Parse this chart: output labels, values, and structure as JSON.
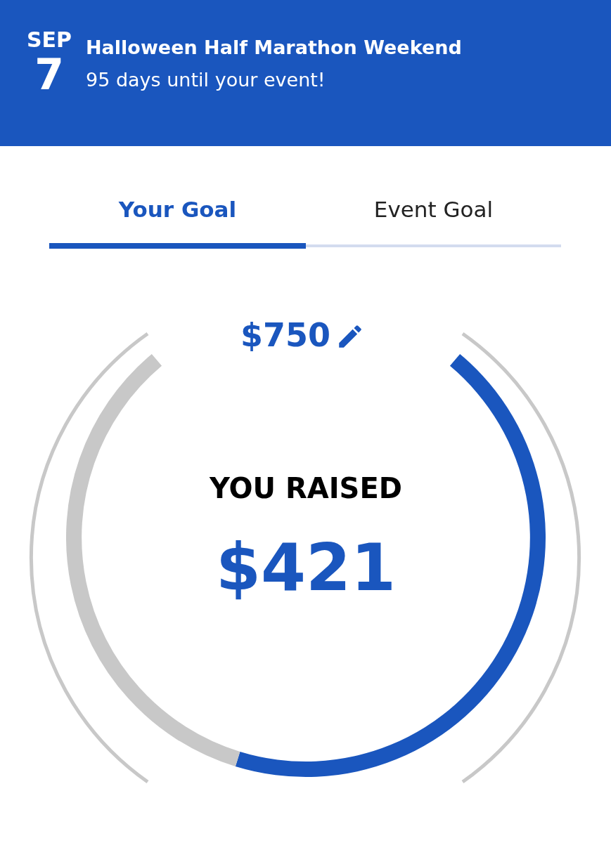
{
  "chart_data": {
    "type": "donut",
    "title": "Halloween Half Marathon Weekend",
    "subtitle": "95 days until your event!",
    "categories": [
      null,
      null
    ],
    "values": [
      56.1,
      43.9
    ],
    "colors": [
      "#1a56be",
      "#c8c8c8"
    ],
    "annotations": [
      "SEP",
      "7",
      "Your Goal",
      "Event Goal",
      "$750",
      "YOU RAISED",
      "$421"
    ]
  }
}
